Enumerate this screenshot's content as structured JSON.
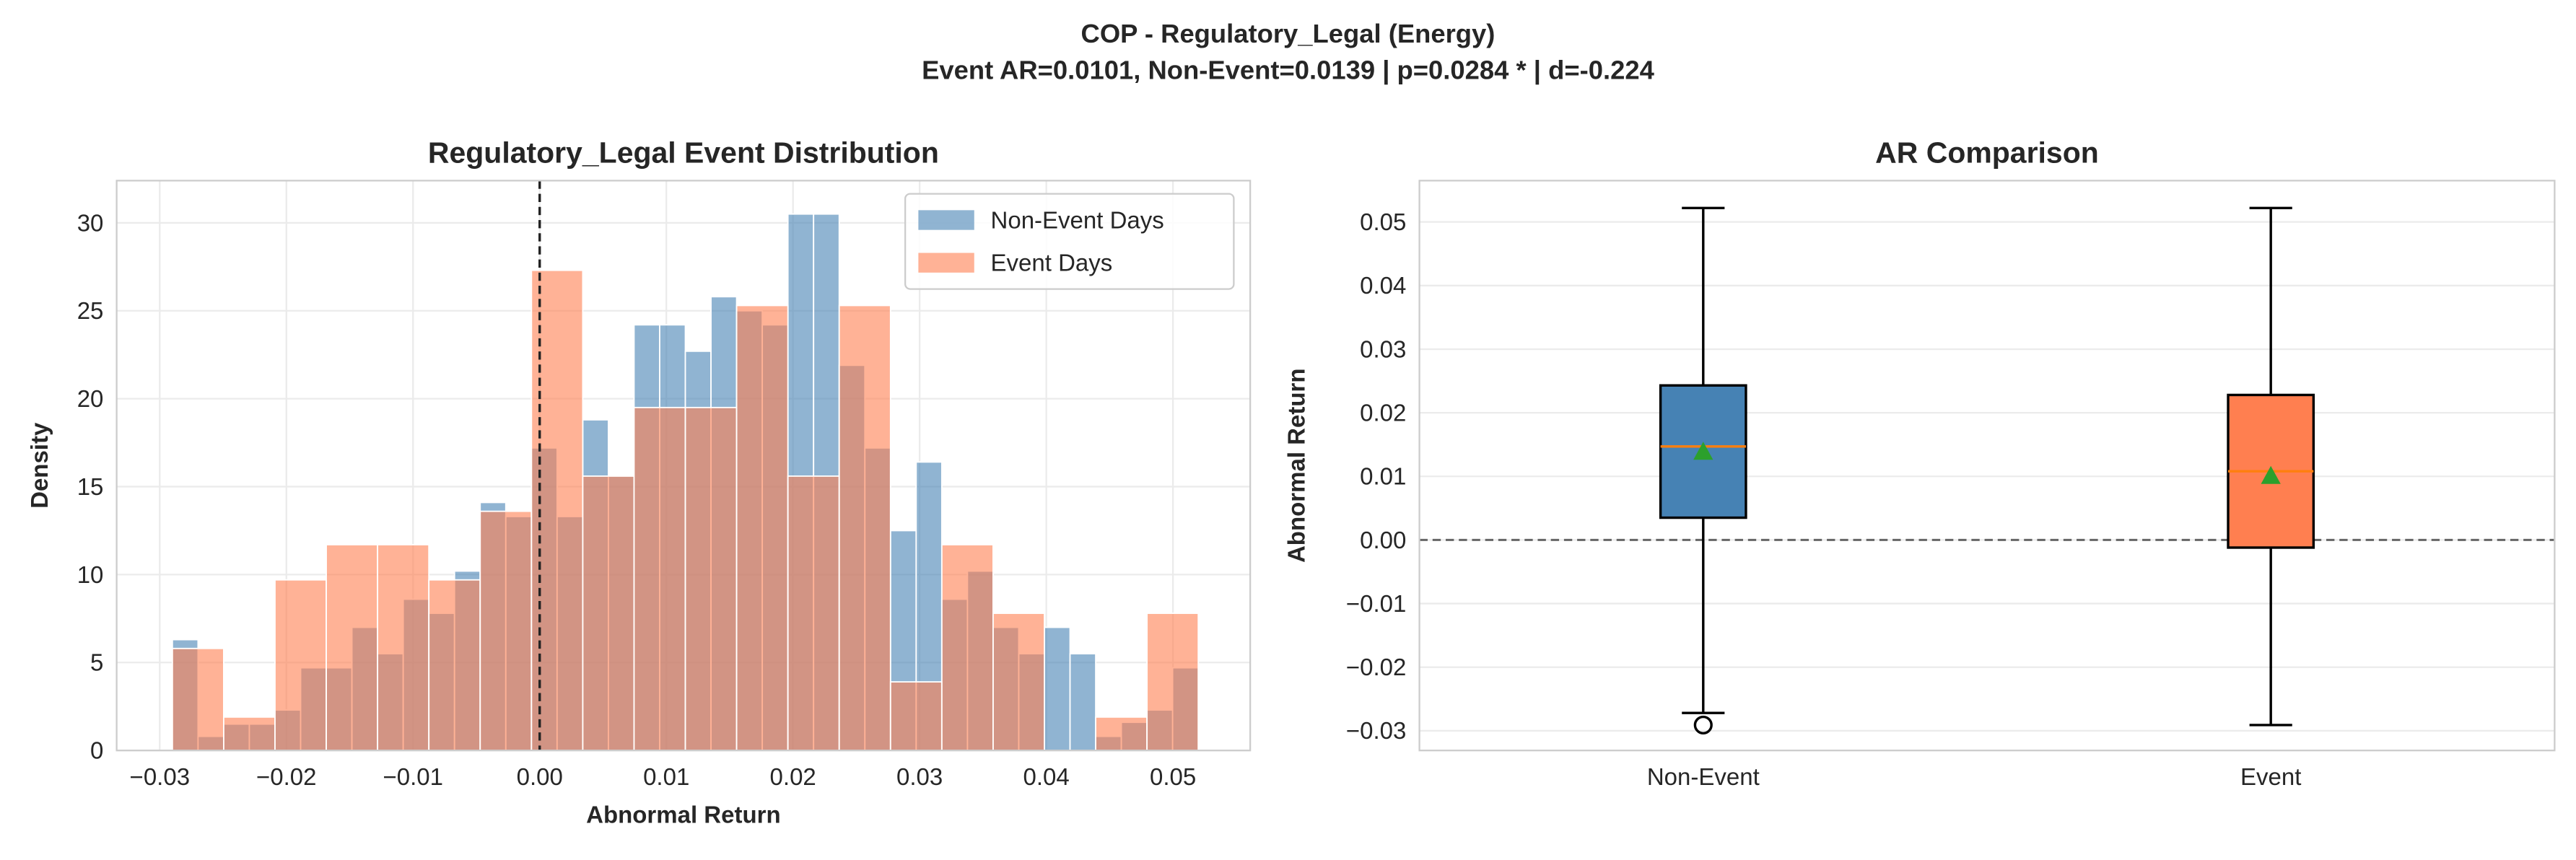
{
  "title": "COP - Regulatory_Legal (Energy)",
  "subtitle": "Event AR=0.0101, Non-Event=0.0139 | p=0.0284 * | d=-0.224",
  "chart_data": [
    {
      "type": "histogram",
      "title": "Regulatory_Legal Event Distribution",
      "xlabel": "Abnormal Return",
      "ylabel": "Density",
      "xlim": [
        -0.0334,
        0.0561
      ],
      "ylim": [
        0,
        32.4
      ],
      "xticks": [
        {
          "value": -0.03,
          "label": "−0.03"
        },
        {
          "value": -0.02,
          "label": "−0.02"
        },
        {
          "value": -0.01,
          "label": "−0.01"
        },
        {
          "value": 0,
          "label": "0.00"
        },
        {
          "value": 0.01,
          "label": "0.01"
        },
        {
          "value": 0.02,
          "label": "0.02"
        },
        {
          "value": 0.03,
          "label": "0.03"
        },
        {
          "value": 0.04,
          "label": "0.04"
        },
        {
          "value": 0.05,
          "label": "0.05"
        }
      ],
      "yticks": [
        0,
        5,
        10,
        15,
        20,
        25,
        30
      ],
      "grid": true,
      "legend": "upper right",
      "reference_line": 0,
      "series": [
        {
          "name": "Non-Event Days",
          "color": "#4682b4",
          "bins": [
            -0.029,
            -0.026975,
            -0.02495,
            -0.022925,
            -0.0209,
            -0.018875,
            -0.01685,
            -0.014825,
            -0.0128,
            -0.010775,
            -0.00875,
            -0.006725,
            -0.0047,
            -0.002675,
            -0.00065,
            0.001375,
            0.0034,
            0.005425,
            0.00745,
            0.009475,
            0.0115,
            0.013525,
            0.01555,
            0.017575,
            0.0196,
            0.021625,
            0.02365,
            0.025675,
            0.0277,
            0.029725,
            0.03175,
            0.033775,
            0.0358,
            0.037825,
            0.03985,
            0.041875,
            0.0439,
            0.045925,
            0.04795,
            0.049975,
            0.052
          ],
          "values": [
            6.3,
            0.8,
            1.5,
            1.5,
            2.3,
            4.7,
            4.7,
            7.0,
            5.5,
            8.6,
            7.8,
            10.2,
            14.1,
            13.3,
            17.2,
            13.3,
            18.8,
            15.6,
            24.2,
            24.2,
            22.7,
            25.8,
            25.0,
            24.2,
            30.5,
            30.5,
            21.9,
            17.2,
            12.5,
            16.4,
            8.6,
            10.2,
            7.0,
            5.5,
            7.0,
            5.5,
            0.8,
            1.6,
            2.3,
            4.7
          ]
        },
        {
          "name": "Event Days",
          "color": "#ff7f50",
          "bins": [
            -0.029,
            -0.02495,
            -0.0209,
            -0.01685,
            -0.0128,
            -0.00875,
            -0.0047,
            -0.00065,
            0.0034,
            0.00745,
            0.0115,
            0.01555,
            0.0196,
            0.02365,
            0.0277,
            0.03175,
            0.0358,
            0.03985,
            0.0439,
            0.04795,
            0.052
          ],
          "values": [
            5.8,
            1.9,
            9.7,
            11.7,
            11.7,
            9.7,
            13.6,
            27.3,
            15.6,
            19.5,
            19.5,
            25.3,
            15.6,
            25.3,
            3.9,
            11.7,
            7.8,
            0,
            1.9,
            7.8
          ]
        }
      ]
    },
    {
      "type": "box",
      "title": "AR Comparison",
      "ylabel": "Abnormal Return",
      "categories": [
        "Non-Event",
        "Event"
      ],
      "ylim": [
        -0.0331,
        0.0565
      ],
      "yticks": [
        {
          "value": -0.03,
          "label": "−0.03"
        },
        {
          "value": -0.02,
          "label": "−0.02"
        },
        {
          "value": -0.01,
          "label": "−0.01"
        },
        {
          "value": 0,
          "label": "0.00"
        },
        {
          "value": 0.01,
          "label": "0.01"
        },
        {
          "value": 0.02,
          "label": "0.02"
        },
        {
          "value": 0.03,
          "label": "0.03"
        },
        {
          "value": 0.04,
          "label": "0.04"
        },
        {
          "value": 0.05,
          "label": "0.05"
        }
      ],
      "grid": true,
      "reference_line": 0,
      "mean_color": "#2ca02c",
      "median_color": "#ff7f0e",
      "boxes": [
        {
          "color": "#4682b4",
          "whisker_low": -0.0272,
          "q1": 0.0035,
          "median": 0.0147,
          "q3": 0.0243,
          "whisker_high": 0.0522,
          "mean": 0.0139,
          "fliers": [
            -0.0291
          ]
        },
        {
          "color": "#ff7f50",
          "whisker_low": -0.0291,
          "q1": -0.0012,
          "median": 0.0108,
          "q3": 0.0228,
          "whisker_high": 0.0522,
          "mean": 0.0101,
          "fliers": []
        }
      ]
    }
  ]
}
